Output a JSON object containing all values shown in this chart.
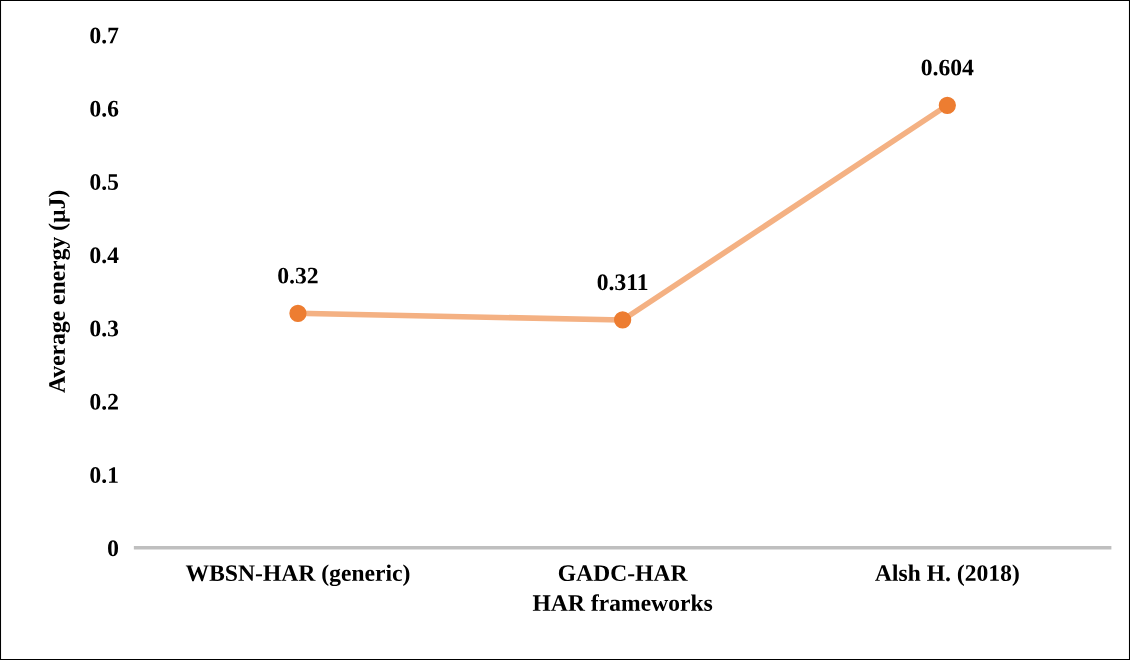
{
  "chart_data": {
    "type": "line",
    "xlabel": "HAR frameworks",
    "ylabel": "Average energy (µJ)",
    "categories": [
      "WBSN-HAR (generic)",
      "GADC-HAR",
      "Alsh H. (2018)"
    ],
    "series": [
      {
        "color": "#f4b183",
        "colors": [
          "#ed7d31",
          "#ed7d31",
          "#ed7d31"
        ],
        "values": [
          0.32,
          0.311,
          0.604
        ]
      }
    ],
    "ylim": [
      0,
      0.7
    ],
    "yticks": [
      {
        "value": 0,
        "label": "0"
      },
      0.1,
      0.2,
      0.3,
      0.4,
      0.5,
      0.6,
      0.7
    ],
    "grid": false,
    "legend": false,
    "marker": "circle",
    "data_labels": true
  }
}
